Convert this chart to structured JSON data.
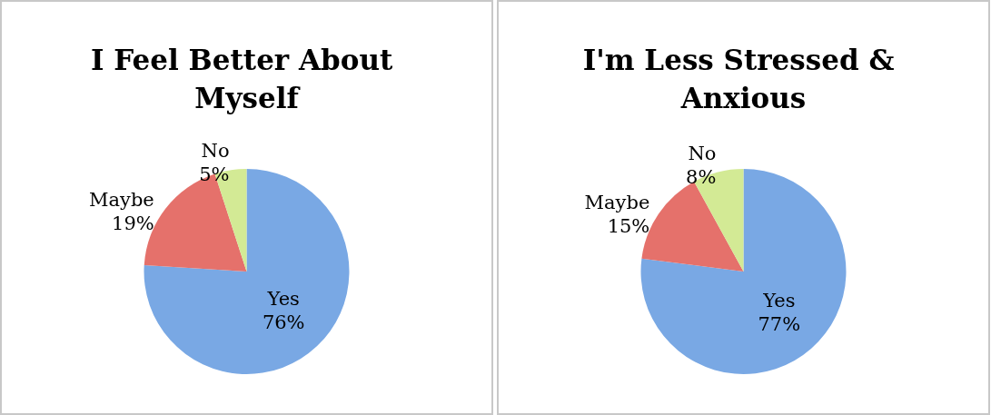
{
  "chart_data": [
    {
      "type": "pie",
      "title": "I Feel Better About Myself",
      "categories": [
        "Yes",
        "Maybe",
        "No"
      ],
      "values": [
        76,
        19,
        5
      ],
      "value_labels": [
        "76%",
        "19%",
        "5%"
      ],
      "colors": [
        "#79a8e4",
        "#e5716b",
        "#d3ea95"
      ],
      "legend": false
    },
    {
      "type": "pie",
      "title": "I'm Less Stressed & Anxious",
      "categories": [
        "Yes",
        "Maybe",
        "No"
      ],
      "values": [
        77,
        15,
        8
      ],
      "value_labels": [
        "77%",
        "15%",
        "8%"
      ],
      "colors": [
        "#79a8e4",
        "#e5716b",
        "#d3ea95"
      ],
      "legend": false
    }
  ]
}
